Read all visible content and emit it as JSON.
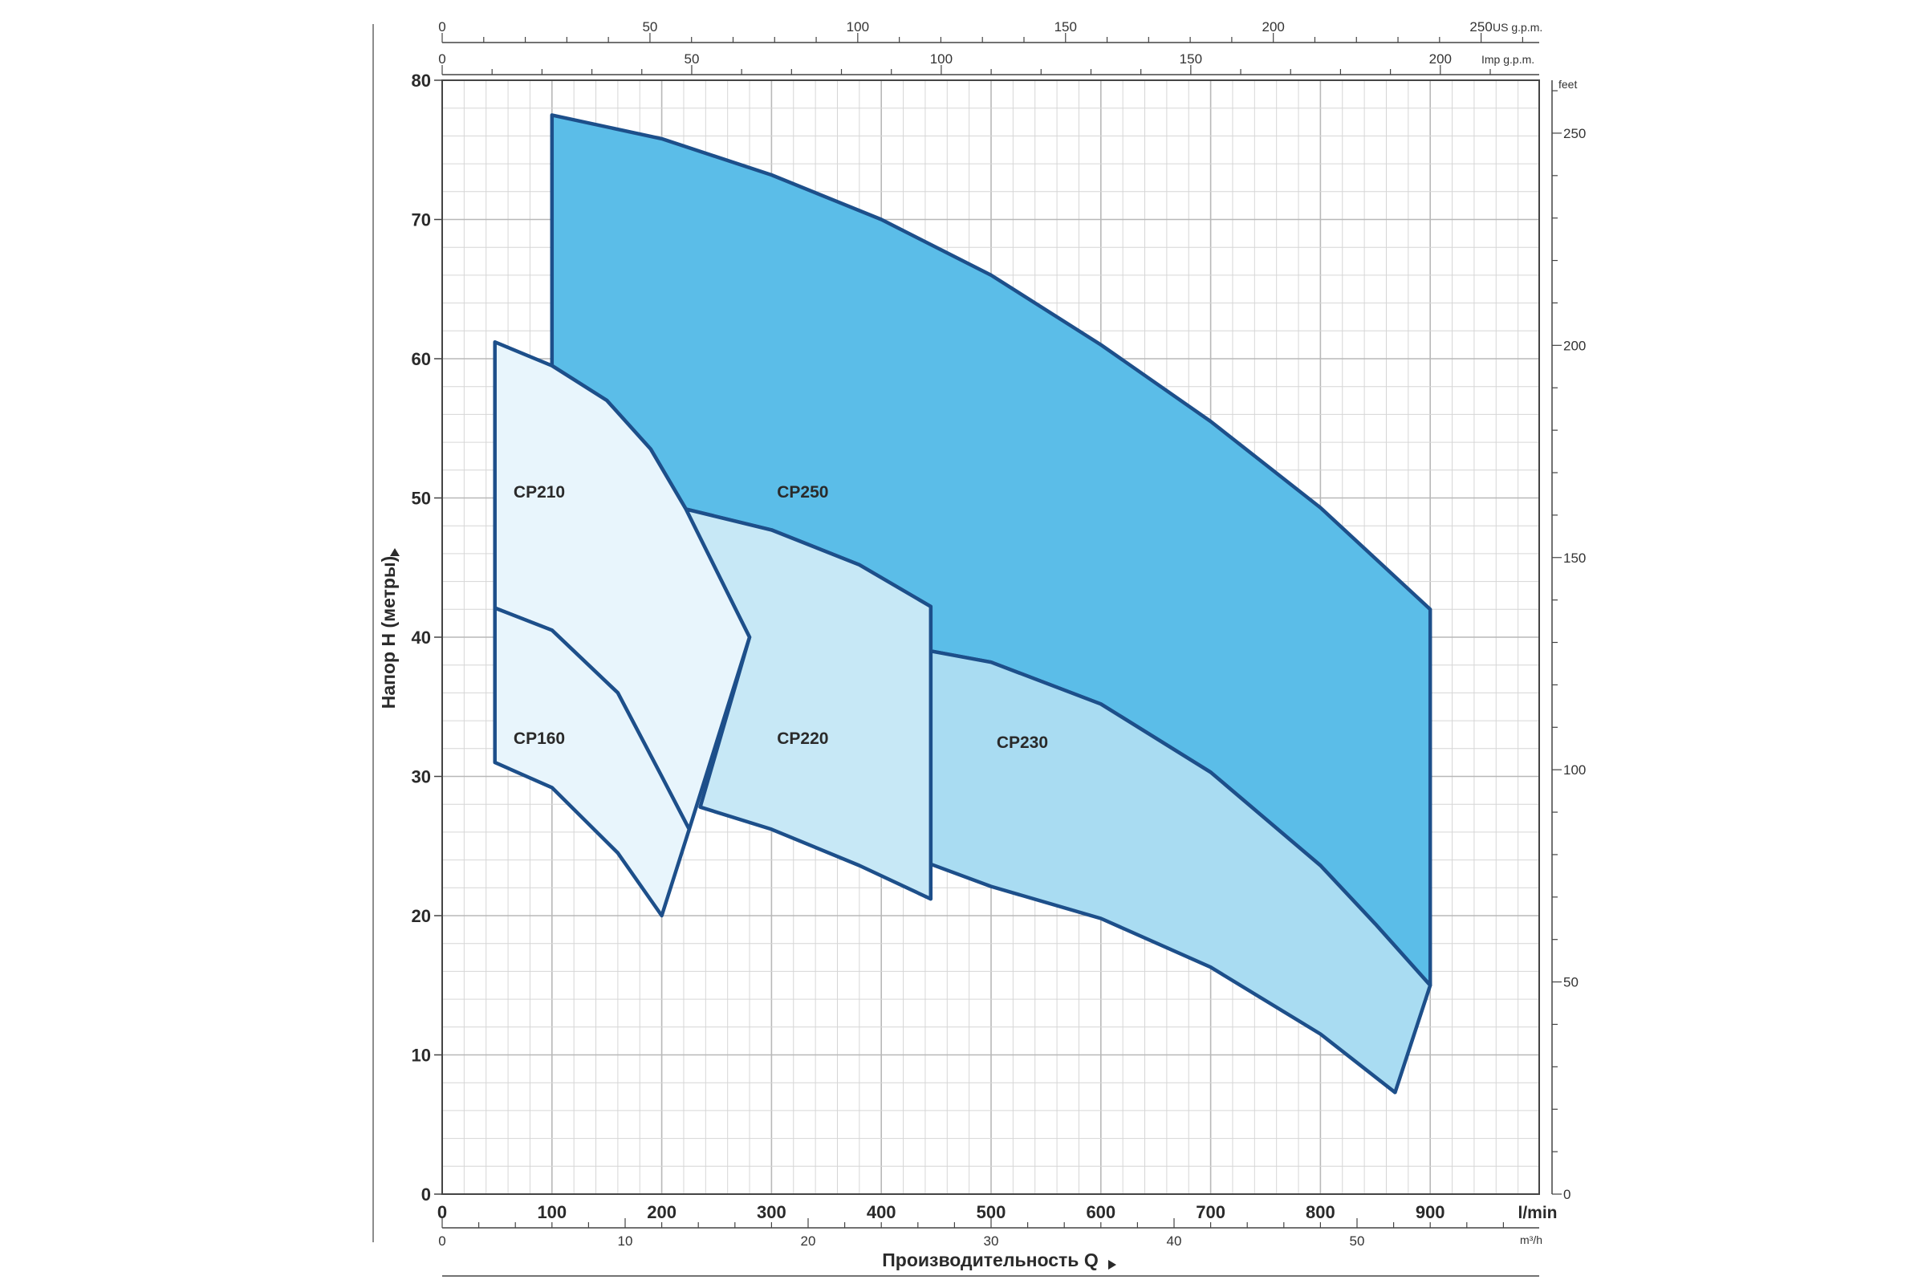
{
  "chart_data": {
    "type": "area",
    "title": "",
    "ylabel": "Напор Н (метры)",
    "xlabel": "Производительность Q",
    "x_unit": "l/min",
    "x_secondary_unit": "m³/h",
    "y_secondary_unit": "feet",
    "top_axis_1_unit": "US g.p.m.",
    "top_axis_2_unit": "Imp g.p.m.",
    "xlim": [
      0,
      1000
    ],
    "ylim": [
      0,
      80
    ],
    "grid": true,
    "x_ticks": [
      {
        "value": 0,
        "label": "0"
      },
      {
        "value": 100,
        "label": "100"
      },
      {
        "value": 200,
        "label": "200"
      },
      {
        "value": 300,
        "label": "300"
      },
      {
        "value": 400,
        "label": "400"
      },
      {
        "value": 500,
        "label": "500"
      },
      {
        "value": 600,
        "label": "600"
      },
      {
        "value": 700,
        "label": "700"
      },
      {
        "value": 800,
        "label": "800"
      },
      {
        "value": 900,
        "label": "900"
      }
    ],
    "y_ticks": [
      {
        "value": 0,
        "label": "0"
      },
      {
        "value": 10,
        "label": "10"
      },
      {
        "value": 20,
        "label": "20"
      },
      {
        "value": 30,
        "label": "30"
      },
      {
        "value": 40,
        "label": "40"
      },
      {
        "value": 50,
        "label": "50"
      },
      {
        "value": 60,
        "label": "60"
      },
      {
        "value": 70,
        "label": "70"
      },
      {
        "value": 80,
        "label": "80"
      }
    ],
    "m3h_ticks": [
      {
        "value": 0,
        "label": "0"
      },
      {
        "value": 10,
        "label": "10"
      },
      {
        "value": 20,
        "label": "20"
      },
      {
        "value": 30,
        "label": "30"
      },
      {
        "value": 40,
        "label": "40"
      },
      {
        "value": 50,
        "label": "50"
      }
    ],
    "usgpm_ticks": [
      {
        "value": 0,
        "label": "0"
      },
      {
        "value": 50,
        "label": "50"
      },
      {
        "value": 100,
        "label": "100"
      },
      {
        "value": 150,
        "label": "150"
      },
      {
        "value": 200,
        "label": "200"
      },
      {
        "value": 250,
        "label": "250"
      }
    ],
    "impgpm_ticks": [
      {
        "value": 0,
        "label": "0"
      },
      {
        "value": 50,
        "label": "50"
      },
      {
        "value": 100,
        "label": "100"
      },
      {
        "value": 150,
        "label": "150"
      },
      {
        "value": 200,
        "label": "200"
      }
    ],
    "feet_ticks": [
      {
        "value": 0,
        "label": "0"
      },
      {
        "value": 50,
        "label": "50"
      },
      {
        "value": 100,
        "label": "100"
      },
      {
        "value": 150,
        "label": "150"
      },
      {
        "value": 200,
        "label": "200"
      },
      {
        "value": 250,
        "label": "250"
      }
    ],
    "regions": [
      {
        "name": "CP250",
        "color": "#5bbde8",
        "label_at": [
          305,
          50.5
        ],
        "polygon": [
          [
            100,
            77.5
          ],
          [
            200,
            75.8
          ],
          [
            300,
            73.2
          ],
          [
            400,
            70
          ],
          [
            500,
            66
          ],
          [
            600,
            61
          ],
          [
            700,
            55.5
          ],
          [
            800,
            49.3
          ],
          [
            900,
            42
          ],
          [
            900,
            15
          ],
          [
            850,
            19.4
          ],
          [
            800,
            23.6
          ],
          [
            700,
            30.3
          ],
          [
            600,
            35.2
          ],
          [
            500,
            38.2
          ],
          [
            445,
            39
          ],
          [
            445,
            42.2
          ],
          [
            380,
            45.2
          ],
          [
            300,
            47.7
          ],
          [
            222,
            49.2
          ],
          [
            190,
            53.5
          ],
          [
            150,
            57
          ],
          [
            100,
            59.5
          ]
        ]
      },
      {
        "name": "CP230",
        "color": "#a9dcf2",
        "label_at": [
          505,
          32.5
        ],
        "polygon": [
          [
            445,
            39
          ],
          [
            500,
            38.2
          ],
          [
            600,
            35.2
          ],
          [
            700,
            30.3
          ],
          [
            800,
            23.6
          ],
          [
            850,
            19.4
          ],
          [
            900,
            15
          ],
          [
            868,
            7.3
          ],
          [
            800,
            11.5
          ],
          [
            700,
            16.3
          ],
          [
            600,
            19.8
          ],
          [
            500,
            22.1
          ],
          [
            445,
            23.7
          ]
        ]
      },
      {
        "name": "CP220",
        "color": "#c7e8f6",
        "label_at": [
          305,
          32.8
        ],
        "polygon": [
          [
            222,
            49.2
          ],
          [
            300,
            47.7
          ],
          [
            380,
            45.2
          ],
          [
            445,
            42.2
          ],
          [
            445,
            21.2
          ],
          [
            380,
            23.6
          ],
          [
            300,
            26.2
          ],
          [
            235,
            27.8
          ],
          [
            280,
            40
          ]
        ]
      },
      {
        "name": "CP210",
        "color": "#e8f5fc",
        "label_at": [
          65,
          50.5
        ],
        "polygon": [
          [
            48,
            61.2
          ],
          [
            100,
            59.5
          ],
          [
            150,
            57
          ],
          [
            190,
            53.5
          ],
          [
            222,
            49.2
          ],
          [
            280,
            40
          ],
          [
            225,
            26.2
          ],
          [
            200,
            30
          ],
          [
            160,
            36
          ],
          [
            100,
            40.5
          ],
          [
            48,
            42.1
          ]
        ]
      },
      {
        "name": "CP160",
        "color": "#e8f5fc",
        "label_at": [
          65,
          32.8
        ],
        "polygon": [
          [
            48,
            42.1
          ],
          [
            100,
            40.5
          ],
          [
            160,
            36
          ],
          [
            200,
            30
          ],
          [
            225,
            26.2
          ],
          [
            200,
            20
          ],
          [
            160,
            24.5
          ],
          [
            100,
            29.2
          ],
          [
            48,
            31
          ]
        ]
      }
    ]
  }
}
